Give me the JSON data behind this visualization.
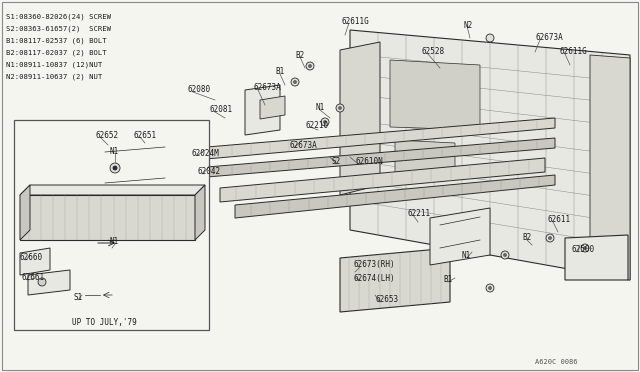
{
  "bg_color": "#f5f5f0",
  "line_color": "#2a2a2a",
  "text_color": "#1a1a1a",
  "light_fill": "#e8e8e2",
  "mid_fill": "#d8d8d0",
  "dark_fill": "#c8c8c0",
  "legend_lines": [
    "S1:08360-82026(24) SCREW",
    "S2:08363-61657(2)  SCREW",
    "B1:08117-02537 (6) BOLT",
    "B2:08117-02037 (2) BOLT",
    "N1:08911-10837 (12)NUT",
    "N2:08911-10637 (2) NUT"
  ],
  "diagram_code": "A620C 0086",
  "fig_w": 6.4,
  "fig_h": 3.72,
  "dpi": 100
}
